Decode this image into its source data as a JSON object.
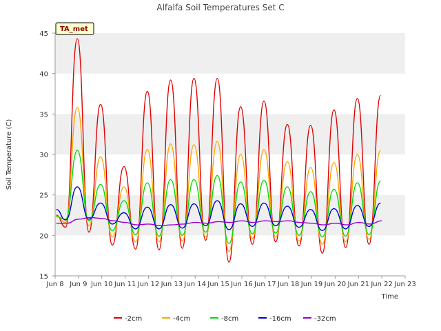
{
  "chart_data": {
    "type": "line",
    "title": "Alfalfa Soil Temperatures Set C",
    "xlabel": "Time",
    "ylabel": "Soil Temperature (C)",
    "badge": "TA_met",
    "xlim": [
      8,
      23
    ],
    "ylim": [
      15,
      45
    ],
    "xticks": [
      {
        "v": 8,
        "label": "Jun 8"
      },
      {
        "v": 9,
        "label": "Jun 9"
      },
      {
        "v": 10,
        "label": "Jun 10"
      },
      {
        "v": 11,
        "label": "Jun 11"
      },
      {
        "v": 12,
        "label": "Jun 12"
      },
      {
        "v": 13,
        "label": "Jun 13"
      },
      {
        "v": 14,
        "label": "Jun 14"
      },
      {
        "v": 15,
        "label": "Jun 15"
      },
      {
        "v": 16,
        "label": "Jun 16"
      },
      {
        "v": 17,
        "label": "Jun 17"
      },
      {
        "v": 18,
        "label": "Jun 18"
      },
      {
        "v": 19,
        "label": "Jun 19"
      },
      {
        "v": 20,
        "label": "Jun 20"
      },
      {
        "v": 21,
        "label": "Jun 21"
      },
      {
        "v": 22,
        "label": "Jun 22"
      },
      {
        "v": 23,
        "label": "Jun 23"
      }
    ],
    "yticks": [
      15,
      20,
      25,
      30,
      35,
      40,
      45
    ],
    "grid": "horizontal bands",
    "legend_position": "bottom",
    "series": [
      {
        "name": "-2cm",
        "color": "#e00000",
        "x": [
          8.05,
          8.45,
          8.95,
          9.45,
          9.95,
          10.45,
          10.95,
          11.45,
          11.95,
          12.45,
          12.95,
          13.45,
          13.95,
          14.45,
          14.95,
          15.45,
          15.95,
          16.45,
          16.95,
          17.45,
          17.95,
          18.45,
          18.95,
          19.45,
          19.95,
          20.45,
          20.95,
          21.45,
          21.95
        ],
        "y": [
          22.5,
          21.0,
          44.3,
          20.4,
          36.2,
          18.8,
          28.5,
          18.3,
          37.8,
          18.2,
          39.2,
          18.4,
          39.4,
          19.4,
          39.4,
          16.7,
          35.9,
          18.9,
          36.6,
          19.2,
          33.7,
          18.7,
          33.6,
          17.8,
          35.5,
          18.5,
          36.9,
          18.9,
          37.3
        ]
      },
      {
        "name": "-4cm",
        "color": "#ffa500",
        "x": [
          8.05,
          8.45,
          8.95,
          9.45,
          9.95,
          10.45,
          10.95,
          11.45,
          11.95,
          12.45,
          12.95,
          13.45,
          13.95,
          14.45,
          14.95,
          15.45,
          15.95,
          16.45,
          16.95,
          17.45,
          17.95,
          18.45,
          18.95,
          19.45,
          19.95,
          20.45,
          20.95,
          21.45,
          21.95
        ],
        "y": [
          22.4,
          21.6,
          35.8,
          21.2,
          29.7,
          19.8,
          26.0,
          19.2,
          30.6,
          19.2,
          31.3,
          19.3,
          31.2,
          19.8,
          31.6,
          18.0,
          30.0,
          19.6,
          30.6,
          19.8,
          29.1,
          19.3,
          28.4,
          18.9,
          29.0,
          19.2,
          30.0,
          19.5,
          30.5
        ]
      },
      {
        "name": "-8cm",
        "color": "#00dd00",
        "x": [
          8.05,
          8.45,
          8.95,
          9.45,
          9.95,
          10.45,
          10.95,
          11.45,
          11.95,
          12.45,
          12.95,
          13.45,
          13.95,
          14.45,
          14.95,
          15.45,
          15.95,
          16.45,
          16.95,
          17.45,
          17.95,
          18.45,
          18.95,
          19.45,
          19.95,
          20.45,
          20.95,
          21.45,
          21.95
        ],
        "y": [
          22.3,
          22.0,
          30.5,
          21.8,
          26.3,
          20.6,
          24.3,
          20.1,
          26.5,
          19.9,
          26.9,
          20.0,
          26.9,
          20.4,
          27.4,
          19.0,
          26.6,
          20.2,
          26.8,
          20.3,
          26.0,
          20.0,
          25.4,
          19.8,
          25.7,
          19.9,
          26.5,
          20.1,
          26.7
        ]
      },
      {
        "name": "-16cm",
        "color": "#0000cc",
        "x": [
          8.05,
          8.45,
          8.95,
          9.45,
          9.95,
          10.45,
          10.95,
          11.45,
          11.95,
          12.45,
          12.95,
          13.45,
          13.95,
          14.45,
          14.95,
          15.45,
          15.95,
          16.45,
          16.95,
          17.45,
          17.95,
          18.45,
          18.95,
          19.45,
          19.95,
          20.45,
          20.95,
          21.45,
          21.95
        ],
        "y": [
          23.2,
          21.9,
          26.0,
          22.0,
          24.0,
          21.4,
          22.8,
          20.8,
          23.5,
          20.8,
          23.8,
          20.9,
          23.9,
          21.2,
          24.3,
          20.7,
          23.9,
          21.1,
          24.0,
          21.2,
          23.6,
          21.0,
          23.2,
          20.6,
          23.3,
          20.8,
          23.7,
          21.1,
          24.0
        ]
      },
      {
        "name": "-32cm",
        "color": "#9900cc",
        "x": [
          8.05,
          8.5,
          9.0,
          9.5,
          10.0,
          10.5,
          11.0,
          11.5,
          12.0,
          12.5,
          13.0,
          13.5,
          14.0,
          14.5,
          15.0,
          15.5,
          16.0,
          16.5,
          17.0,
          17.5,
          18.0,
          18.5,
          19.0,
          19.5,
          20.0,
          20.5,
          21.0,
          21.5,
          22.0
        ],
        "y": [
          21.5,
          21.5,
          22.0,
          22.2,
          22.1,
          21.8,
          21.6,
          21.3,
          21.4,
          21.2,
          21.3,
          21.4,
          21.6,
          21.5,
          21.7,
          21.6,
          21.8,
          21.6,
          21.8,
          21.7,
          21.8,
          21.6,
          21.5,
          21.3,
          21.5,
          21.3,
          21.6,
          21.4,
          21.8
        ]
      }
    ]
  }
}
